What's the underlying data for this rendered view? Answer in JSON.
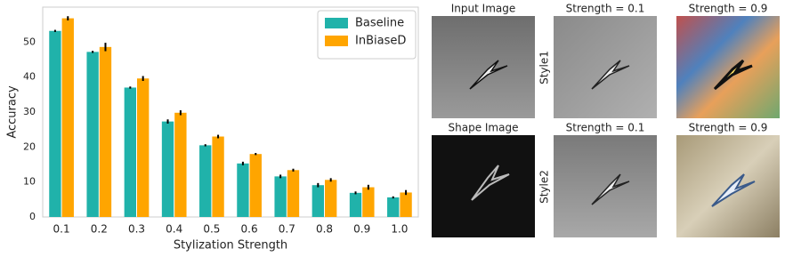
{
  "chart_data": {
    "type": "bar",
    "x_label": "Stylization Strength",
    "y_label": "Accuracy",
    "categories": [
      "0.1",
      "0.2",
      "0.3",
      "0.4",
      "0.5",
      "0.6",
      "0.7",
      "0.8",
      "0.9",
      "1.0"
    ],
    "series": [
      {
        "name": "Baseline",
        "color": "#20b2aa",
        "values": [
          53.2,
          47.2,
          37.0,
          27.3,
          20.5,
          15.3,
          11.6,
          9.1,
          6.9,
          5.6
        ],
        "errors": [
          0.3,
          0.3,
          0.3,
          0.6,
          0.3,
          0.5,
          0.5,
          0.6,
          0.4,
          0.3
        ]
      },
      {
        "name": "InBiaseD",
        "color": "#ffa500",
        "values": [
          56.8,
          48.6,
          39.6,
          29.8,
          23.0,
          18.0,
          13.4,
          10.6,
          8.5,
          7.0
        ],
        "errors": [
          0.6,
          1.2,
          0.7,
          0.7,
          0.5,
          0.3,
          0.4,
          0.5,
          0.7,
          0.7
        ]
      }
    ],
    "ylim": [
      0,
      60
    ],
    "yticks": [
      0,
      10,
      20,
      30,
      40,
      50
    ],
    "grid": false,
    "legend": "upper right"
  },
  "images": {
    "titles": [
      "Input Image",
      "Strength = 0.1",
      "Strength = 0.9",
      "Shape Image",
      "Strength = 0.1",
      "Strength = 0.9"
    ],
    "row_labels": [
      "Style1",
      "Style2"
    ]
  }
}
